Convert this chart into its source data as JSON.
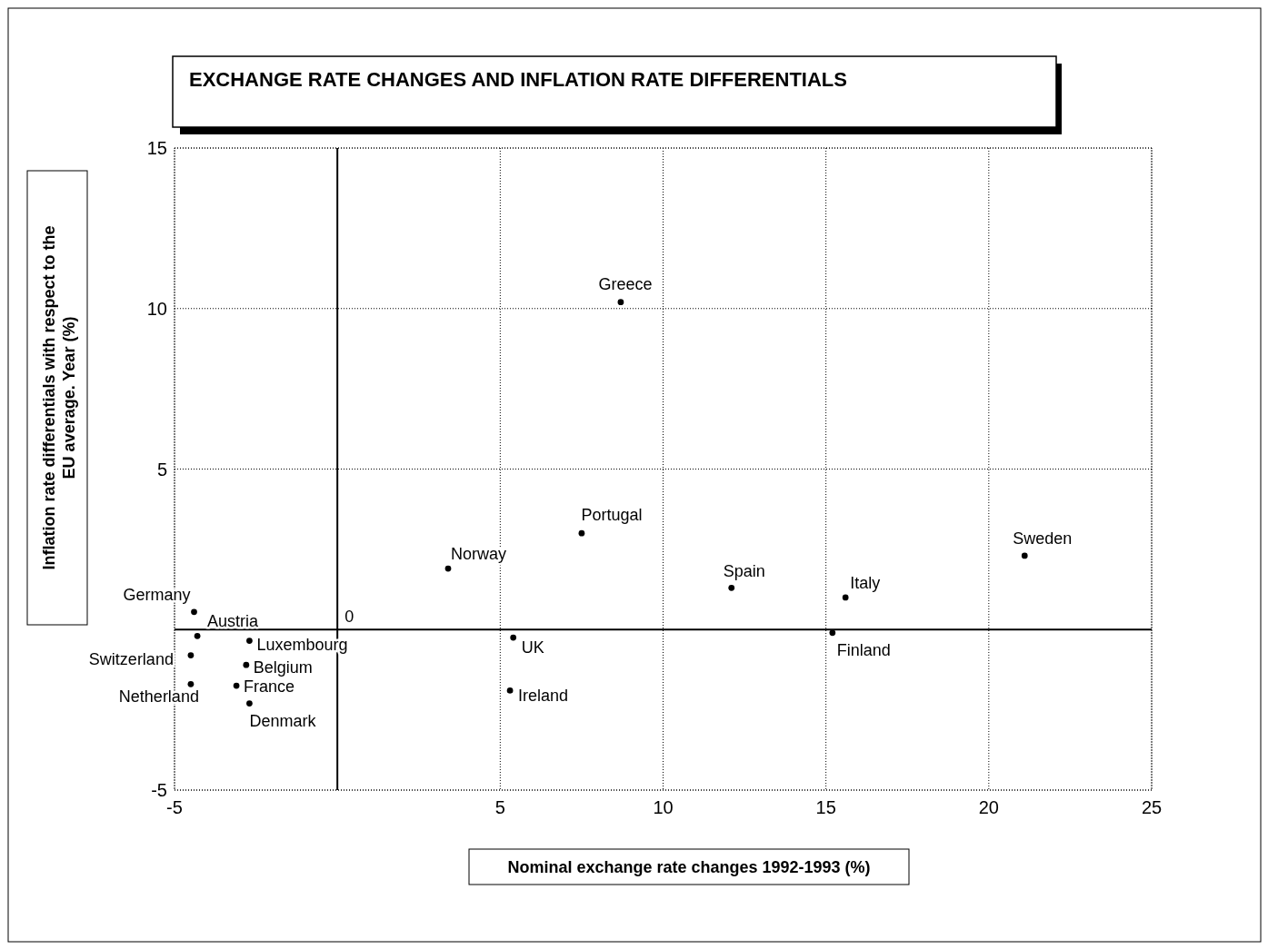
{
  "chart_data": {
    "type": "scatter",
    "title": "EXCHANGE RATE CHANGES AND INFLATION RATE DIFFERENTIALS",
    "xlabel": "Nominal exchange rate changes 1992-1993 (%)",
    "ylabel": "Inflation rate differentials with respect to the\nEU average. Year (%)",
    "xlim": [
      -5,
      25
    ],
    "ylim": [
      -5,
      15
    ],
    "xticks": [
      -5,
      5,
      10,
      15,
      20,
      25
    ],
    "yticks": [
      -5,
      5,
      10,
      15
    ],
    "grid": true,
    "marker": "circle",
    "annotations": [
      "0"
    ],
    "series": [
      {
        "color": "#000000",
        "x": [
          8.7,
          7.5,
          3.4,
          12.1,
          15.6,
          21.1,
          15.2,
          5.4,
          5.3,
          -4.4,
          -4.3,
          -4.5,
          -4.5,
          -2.7,
          -2.8,
          -3.1,
          -2.7
        ],
        "values": [
          10.2,
          3.0,
          1.9,
          1.3,
          1.0,
          2.3,
          -0.1,
          -0.25,
          -1.9,
          0.55,
          -0.2,
          -0.8,
          -1.7,
          -0.35,
          -1.1,
          -1.75,
          -2.3
        ],
        "value_labels": [
          "Greece",
          "Portugal",
          "Norway",
          "Spain",
          "Italy",
          "Sweden",
          "Finland",
          "UK",
          "Ireland",
          "Germany",
          "Austria",
          "Switzerland",
          "Netherland",
          "Luxembourg",
          "Belgium",
          "France",
          "Denmark"
        ]
      }
    ]
  }
}
